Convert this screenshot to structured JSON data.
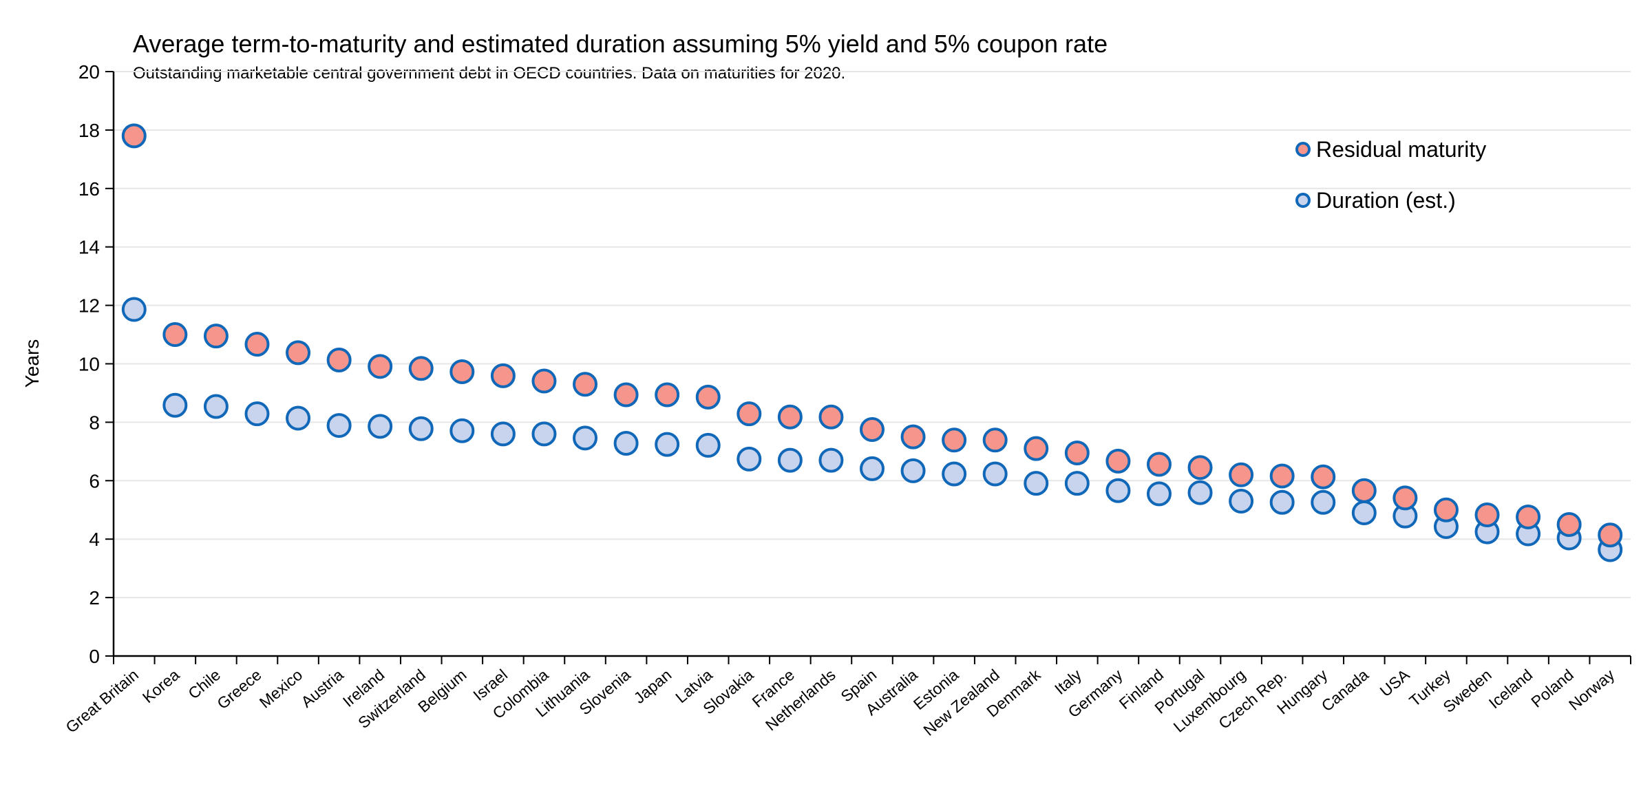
{
  "chart_data": {
    "type": "scatter",
    "title": "Average term-to-maturity and estimated duration assuming 5% yield and 5% coupon rate",
    "subtitle": "Outstanding marketable central government debt in OECD countries. Data on maturities for 2020.",
    "xlabel": "",
    "ylabel": "Years",
    "ylim": [
      0,
      20
    ],
    "yticks": [
      "0",
      "2",
      "4",
      "6",
      "8",
      "10",
      "12",
      "14",
      "16",
      "18",
      "20"
    ],
    "grid": true,
    "legend_position": "top-right",
    "categories": [
      "Great Britain",
      "Korea",
      "Chile",
      "Greece",
      "Mexico",
      "Austria",
      "Ireland",
      "Switzerland",
      "Belgium",
      "Israel",
      "Colombia",
      "Lithuania",
      "Slovenia",
      "Japan",
      "Latvia",
      "Slovakia",
      "France",
      "Netherlands",
      "Spain",
      "Australia",
      "Estonia",
      "New Zealand",
      "Denmark",
      "Italy",
      "Germany",
      "Finland",
      "Portugal",
      "Luxembourg",
      "Czech Rep.",
      "Hungary",
      "Canada",
      "USA",
      "Turkey",
      "Sweden",
      "Iceland",
      "Poland",
      "Norway"
    ],
    "series": [
      {
        "name": "Residual maturity",
        "fill": "#F5958B",
        "stroke": "#1168B8",
        "values": [
          17.8,
          11.0,
          10.95,
          10.67,
          10.38,
          10.13,
          9.91,
          9.84,
          9.73,
          9.59,
          9.41,
          9.3,
          8.94,
          8.94,
          8.86,
          8.29,
          8.18,
          8.18,
          7.75,
          7.5,
          7.39,
          7.39,
          7.1,
          6.95,
          6.67,
          6.56,
          6.45,
          6.2,
          6.16,
          6.13,
          5.66,
          5.41,
          5.0,
          4.83,
          4.76,
          4.5,
          4.14
        ]
      },
      {
        "name": "Duration (est.)",
        "fill": "#C8D3EE",
        "stroke": "#1168B8",
        "values": [
          11.86,
          8.58,
          8.54,
          8.29,
          8.14,
          7.89,
          7.86,
          7.78,
          7.71,
          7.6,
          7.6,
          7.46,
          7.28,
          7.24,
          7.21,
          6.74,
          6.7,
          6.7,
          6.41,
          6.34,
          6.23,
          6.23,
          5.91,
          5.91,
          5.66,
          5.55,
          5.59,
          5.3,
          5.26,
          5.26,
          4.9,
          4.79,
          4.43,
          4.25,
          4.18,
          4.04,
          3.64
        ]
      }
    ]
  }
}
